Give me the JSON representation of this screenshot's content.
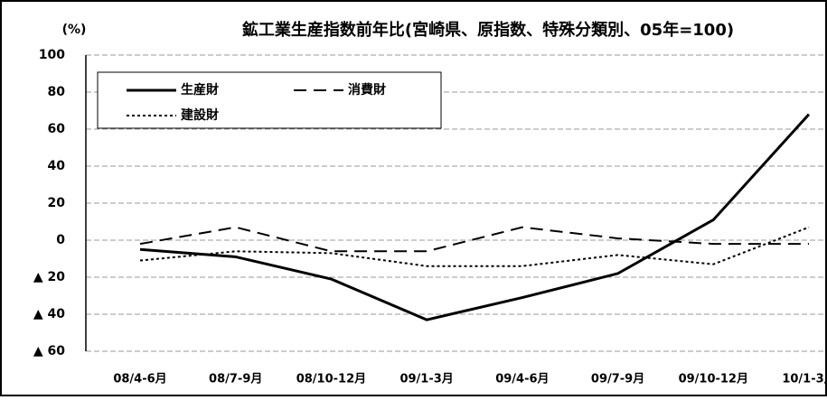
{
  "chart_data": {
    "type": "line",
    "title": "鉱工業生産指数前年比(宮崎県、原指数、特殊分類別、05年=100)",
    "y_unit_label": "(%)",
    "categories": [
      "08/4-6月",
      "08/7-9月",
      "08/10-12月",
      "09/1-3月",
      "09/4-6月",
      "09/7-9月",
      "09/10-12月",
      "10/1-3月"
    ],
    "series": [
      {
        "name": "生産財",
        "color": "#000000",
        "style": "solid",
        "values": [
          -5,
          -9,
          -21,
          -43,
          -31,
          -18,
          11,
          68
        ]
      },
      {
        "name": "消費財",
        "color": "#000000",
        "style": "dashed",
        "values": [
          -2,
          7,
          -6,
          -6,
          7,
          1,
          -2,
          -2
        ]
      },
      {
        "name": "建設財",
        "color": "#000000",
        "style": "dotted",
        "values": [
          -11,
          -6,
          -7,
          -14,
          -14,
          -8,
          -13,
          7
        ]
      }
    ],
    "ylim": [
      -60,
      100
    ],
    "yticks": [
      100,
      80,
      60,
      40,
      20,
      0,
      {
        "value": -20,
        "label": "▲ 20"
      },
      {
        "value": -40,
        "label": "▲ 40"
      },
      {
        "value": -60,
        "label": "▲ 60"
      }
    ],
    "grid": true,
    "legend": "upper left"
  }
}
